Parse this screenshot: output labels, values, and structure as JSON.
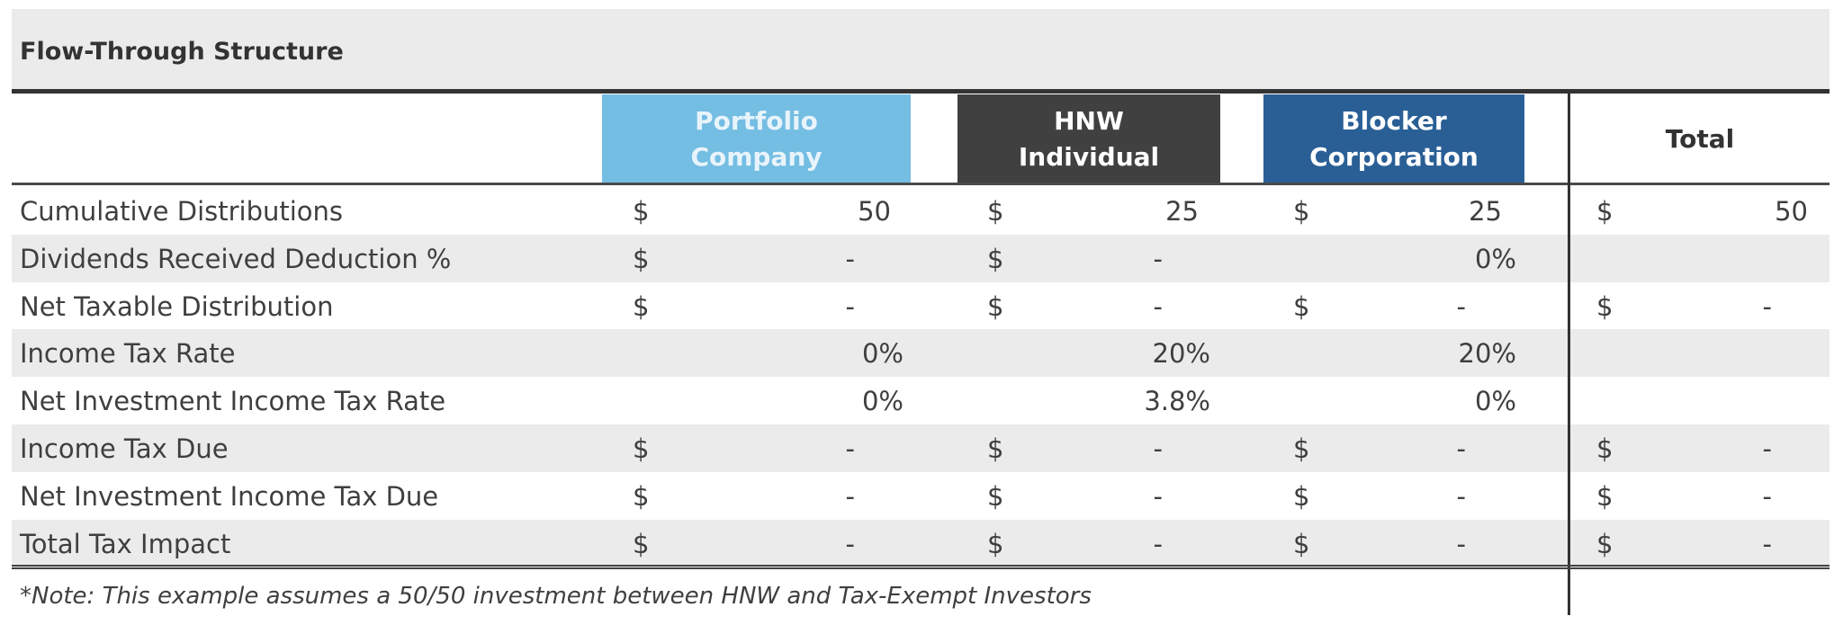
{
  "title": "Flow-Through Structure",
  "columns": [
    {
      "label": "Portfolio Company",
      "line1": "Portfolio",
      "line2": "Company",
      "bg": "#74bde3",
      "fg": "#e8f4fb"
    },
    {
      "label": "HNW Individual",
      "line1": "HNW",
      "line2": "Individual",
      "bg": "#404040",
      "fg": "#ffffff"
    },
    {
      "label": "Blocker Corporation",
      "line1": "Blocker",
      "line2": "Corporation",
      "bg": "#2a5f96",
      "fg": "#ffffff"
    },
    {
      "label": "Total",
      "line1": "Total",
      "line2": "",
      "bg": "#ffffff",
      "fg": "#333333"
    }
  ],
  "rows": [
    {
      "label": "Cumulative Distributions",
      "cells": [
        {
          "sym": "$",
          "val": "50"
        },
        {
          "sym": "$",
          "val": "25"
        },
        {
          "sym": "$",
          "val": "25"
        },
        {
          "sym": "$",
          "val": "50"
        }
      ]
    },
    {
      "label": "Dividends Received Deduction %",
      "cells": [
        {
          "sym": "$",
          "val": "-"
        },
        {
          "sym": "$",
          "val": "-"
        },
        {
          "sym": "",
          "val": "0%"
        },
        {
          "sym": "",
          "val": ""
        }
      ]
    },
    {
      "label": "Net Taxable Distribution",
      "cells": [
        {
          "sym": "$",
          "val": "-"
        },
        {
          "sym": "$",
          "val": "-"
        },
        {
          "sym": "$",
          "val": "-"
        },
        {
          "sym": "$",
          "val": "-"
        }
      ]
    },
    {
      "label": "Income Tax Rate",
      "cells": [
        {
          "sym": "",
          "val": "0%"
        },
        {
          "sym": "",
          "val": "20%"
        },
        {
          "sym": "",
          "val": "20%"
        },
        {
          "sym": "",
          "val": ""
        }
      ]
    },
    {
      "label": "Net Investment Income Tax Rate",
      "cells": [
        {
          "sym": "",
          "val": "0%"
        },
        {
          "sym": "",
          "val": "3.8%"
        },
        {
          "sym": "",
          "val": "0%"
        },
        {
          "sym": "",
          "val": ""
        }
      ]
    },
    {
      "label": "Income Tax Due",
      "cells": [
        {
          "sym": "$",
          "val": "-"
        },
        {
          "sym": "$",
          "val": "-"
        },
        {
          "sym": "$",
          "val": "-"
        },
        {
          "sym": "$",
          "val": "-"
        }
      ]
    },
    {
      "label": "Net Investment Income Tax Due",
      "cells": [
        {
          "sym": "$",
          "val": "-"
        },
        {
          "sym": "$",
          "val": "-"
        },
        {
          "sym": "$",
          "val": "-"
        },
        {
          "sym": "$",
          "val": "-"
        }
      ]
    },
    {
      "label": "Total Tax Impact",
      "cells": [
        {
          "sym": "$",
          "val": "-"
        },
        {
          "sym": "$",
          "val": "-"
        },
        {
          "sym": "$",
          "val": "-"
        },
        {
          "sym": "$",
          "val": "-"
        }
      ]
    }
  ],
  "note": "*Note: This example assumes a 50/50 investment between HNW and Tax-Exempt Investors"
}
